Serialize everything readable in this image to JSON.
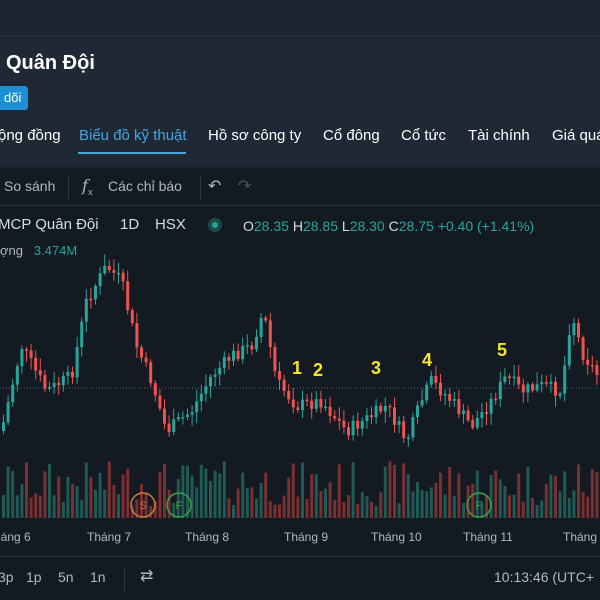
{
  "header": {
    "title": "Quân Đội",
    "badge": "dõi"
  },
  "tabs": [
    {
      "label": "ộng đồng"
    },
    {
      "label": "Biểu đồ kỹ thuật"
    },
    {
      "label": "Hồ sơ công ty"
    },
    {
      "label": "Cổ đông"
    },
    {
      "label": "Cổ tức"
    },
    {
      "label": "Tài chính"
    },
    {
      "label": "Giá quá"
    }
  ],
  "toolbar": {
    "compare_label": "So sánh",
    "indicators_label": "Các chỉ báo"
  },
  "legend": {
    "symbol": "MCP Quân Đội",
    "interval": "1D",
    "exchange": "HSX",
    "open_label": "O",
    "open": "28.35",
    "high_label": "H",
    "high": "28.85",
    "low_label": "L",
    "low": "28.30",
    "close_label": "C",
    "close": "28.75",
    "change": "+0.40 (+1.41%)",
    "volume_label": "ợng",
    "volume": "3.474M"
  },
  "chart_data": {
    "type": "candlestick",
    "x_tick_labels": [
      "háng 6",
      "Tháng 7",
      "Tháng 8",
      "Tháng 9",
      "Tháng 10",
      "Tháng 11",
      "Tháng"
    ],
    "annotations": [
      "1",
      "2",
      "3",
      "4",
      "5"
    ],
    "event_markers": [
      "S",
      "F",
      "F"
    ],
    "colors": {
      "up": "#26a69a",
      "down": "#ef5350",
      "annotation": "#f5e62a"
    }
  },
  "bottombar": {
    "ranges": [
      "3p",
      "1p",
      "5n",
      "1n"
    ],
    "time": "10:13:46 (UTC+"
  }
}
